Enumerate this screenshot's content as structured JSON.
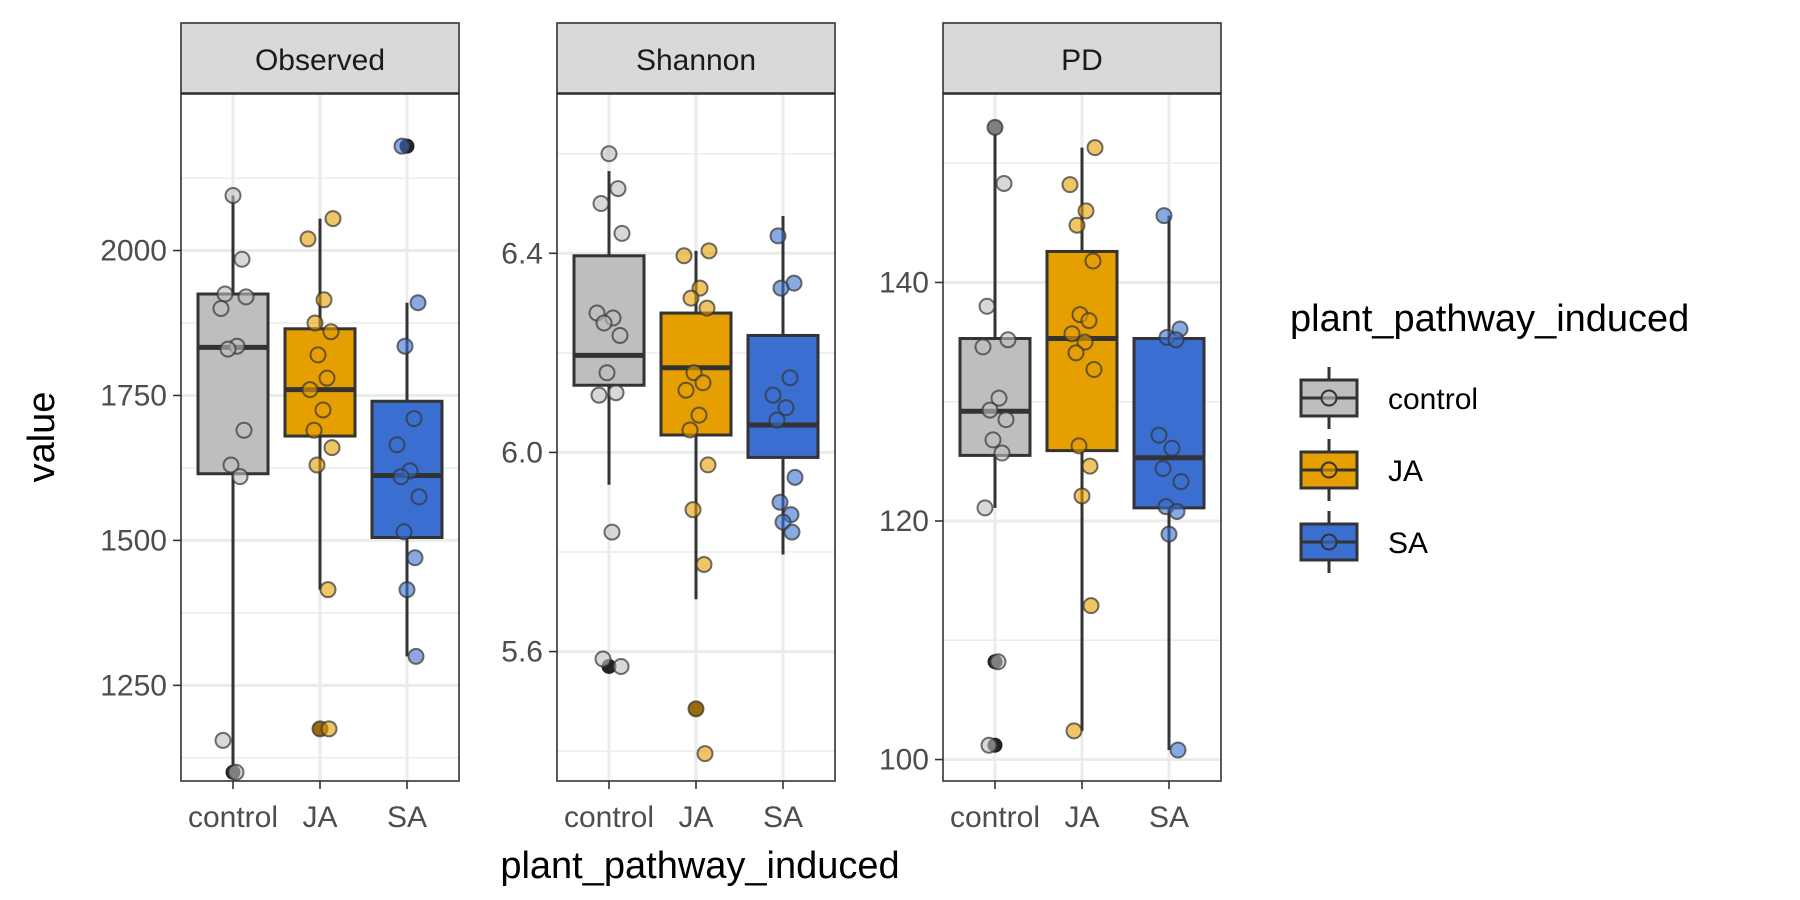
{
  "chart_data": {
    "type": "boxplot",
    "xlabel": "plant_pathway_induced",
    "ylabel": "value",
    "categories": [
      "control",
      "JA",
      "SA"
    ],
    "colors": {
      "control": "#bebebe",
      "JA": "#e69f00",
      "SA": "#3a6fd1"
    },
    "legend": {
      "title": "plant_pathway_induced",
      "position": "right",
      "items": [
        "control",
        "JA",
        "SA"
      ]
    },
    "grid": true,
    "panels": [
      {
        "strip": "Observed",
        "ylim": [
          1085,
          2270
        ],
        "yticks": [
          1250,
          1500,
          1750,
          2000
        ],
        "ytick_labels": [
          "1250",
          "1500",
          "1750",
          "2000"
        ],
        "minor_ticks": [
          1125,
          1375,
          1625,
          1875,
          2125
        ],
        "boxes": [
          {
            "group": "control",
            "q1": 1615,
            "median": 1833,
            "q3": 1925,
            "whisker_low": 1100,
            "whisker_high": 2095,
            "outliers": [
              1100
            ]
          },
          {
            "group": "JA",
            "q1": 1680,
            "median": 1760,
            "q3": 1865,
            "whisker_low": 1415,
            "whisker_high": 2055,
            "outliers": [
              1175
            ]
          },
          {
            "group": "SA",
            "q1": 1505,
            "median": 1612,
            "q3": 1740,
            "whisker_low": 1300,
            "whisker_high": 1910,
            "outliers": [
              2180
            ]
          }
        ],
        "points": [
          {
            "group": "control",
            "values": [
              2095,
              1985,
              1925,
              1920,
              1900,
              1835,
              1830,
              1690,
              1630,
              1610,
              1155,
              1100
            ]
          },
          {
            "group": "JA",
            "values": [
              2055,
              2020,
              1915,
              1875,
              1860,
              1820,
              1780,
              1760,
              1725,
              1690,
              1660,
              1630,
              1415,
              1175,
              1175
            ]
          },
          {
            "group": "SA",
            "values": [
              2180,
              1910,
              1835,
              1710,
              1665,
              1620,
              1610,
              1575,
              1515,
              1470,
              1415,
              1300
            ]
          }
        ]
      },
      {
        "strip": "Shannon",
        "ylim": [
          5.34,
          6.72
        ],
        "yticks": [
          5.6,
          6.0,
          6.4
        ],
        "ytick_labels": [
          "5.6",
          "6.0",
          "6.4"
        ],
        "minor_ticks": [
          5.4,
          5.8,
          6.2,
          6.6
        ],
        "boxes": [
          {
            "group": "control",
            "q1": 6.135,
            "median": 6.195,
            "q3": 6.395,
            "whisker_low": 5.935,
            "whisker_high": 6.565,
            "outliers": [
              5.57
            ]
          },
          {
            "group": "JA",
            "q1": 6.035,
            "median": 6.17,
            "q3": 6.28,
            "whisker_low": 5.705,
            "whisker_high": 6.405,
            "outliers": [
              5.485
            ]
          },
          {
            "group": "SA",
            "q1": 5.99,
            "median": 6.055,
            "q3": 6.235,
            "whisker_low": 5.795,
            "whisker_high": 6.475,
            "outliers": []
          }
        ],
        "points": [
          {
            "group": "control",
            "values": [
              6.6,
              6.53,
              6.5,
              6.44,
              6.28,
              6.27,
              6.26,
              6.235,
              6.16,
              6.12,
              6.115,
              5.84,
              5.585,
              5.57
            ]
          },
          {
            "group": "JA",
            "values": [
              6.405,
              6.395,
              6.33,
              6.31,
              6.29,
              6.16,
              6.14,
              6.125,
              6.075,
              6.045,
              5.975,
              5.885,
              5.775,
              5.485,
              5.395
            ]
          },
          {
            "group": "SA",
            "values": [
              6.435,
              6.34,
              6.33,
              6.15,
              6.115,
              6.09,
              6.065,
              5.95,
              5.9,
              5.875,
              5.86,
              5.84
            ]
          }
        ]
      },
      {
        "strip": "PD",
        "ylim": [
          98.2,
          155.8
        ],
        "yticks": [
          100,
          120,
          140
        ],
        "ytick_labels": [
          "100",
          "120",
          "140"
        ],
        "minor_ticks": [
          110,
          130,
          150
        ],
        "boxes": [
          {
            "group": "control",
            "q1": 125.5,
            "median": 129.2,
            "q3": 135.3,
            "whisker_low": 121.1,
            "whisker_high": 153,
            "outliers": [
              108.2,
              101.2,
              153
            ]
          },
          {
            "group": "JA",
            "q1": 125.9,
            "median": 135.3,
            "q3": 142.6,
            "whisker_low": 102.4,
            "whisker_high": 151.3,
            "outliers": []
          },
          {
            "group": "SA",
            "q1": 121.1,
            "median": 125.3,
            "q3": 135.3,
            "whisker_low": 100.8,
            "whisker_high": 145.6,
            "outliers": []
          }
        ],
        "points": [
          {
            "group": "control",
            "values": [
              153,
              148.3,
              138,
              135.2,
              134.6,
              130.3,
              129.3,
              128.5,
              126.8,
              125.7,
              121.1,
              108.2,
              101.2
            ]
          },
          {
            "group": "JA",
            "values": [
              151.3,
              148.2,
              146,
              144.8,
              141.8,
              137.3,
              136.8,
              135.7,
              135,
              134.1,
              132.7,
              126.3,
              124.6,
              122.1,
              112.9,
              102.4
            ]
          },
          {
            "group": "SA",
            "values": [
              145.6,
              136.1,
              135.4,
              135.2,
              127.2,
              126.1,
              124.4,
              123.3,
              121.2,
              120.8,
              118.9,
              100.8
            ]
          }
        ]
      }
    ]
  }
}
